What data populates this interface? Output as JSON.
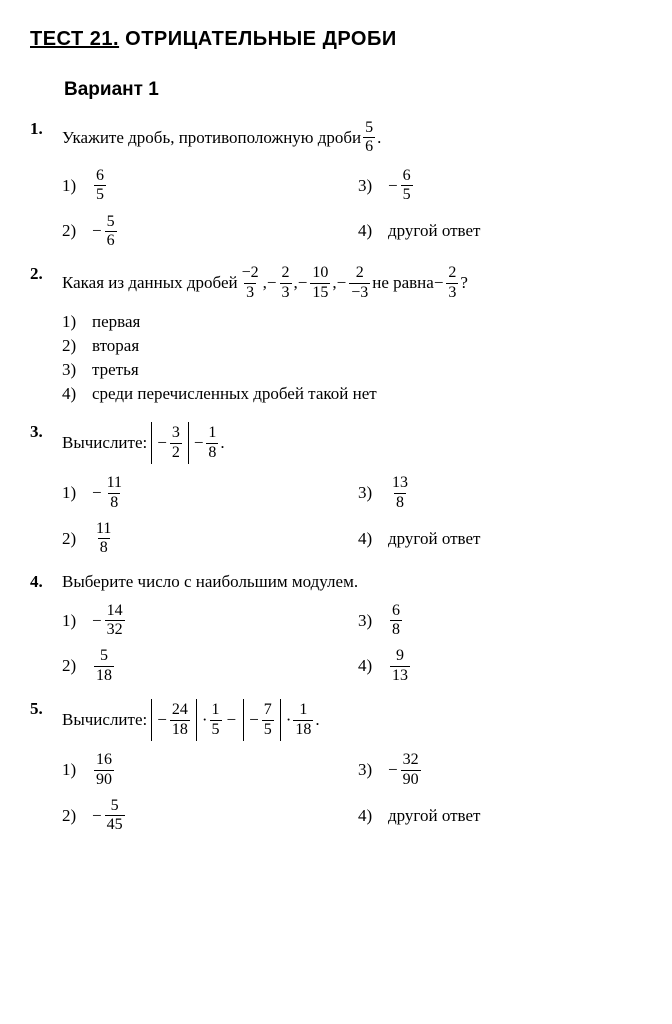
{
  "title_prefix": "ТЕСТ 21.",
  "title_rest": " ОТРИЦАТЕЛЬНЫЕ ДРОБИ",
  "variant": "Вариант 1",
  "q1": {
    "num": "1.",
    "text_a": "Укажите дробь, противоположную дроби ",
    "text_b": ".",
    "f_n": "5",
    "f_d": "6",
    "o1": "1)",
    "o2": "2)",
    "o3": "3)",
    "o4": "4)",
    "a1n": "6",
    "a1d": "5",
    "a2n": "5",
    "a2d": "6",
    "a3n": "6",
    "a3d": "5",
    "a4": "другой ответ"
  },
  "q2": {
    "num": "2.",
    "text_a": "Какая из данных дробей ",
    "text_b": " не равна ",
    "q_end": " ?",
    "comma": ", ",
    "f1n": "−2",
    "f1d": "3",
    "f2n": "2",
    "f2d": "3",
    "f3n": "10",
    "f3d": "15",
    "f4n": "2",
    "f4d": "−3",
    "frn": "2",
    "frd": "3",
    "o1": "1)",
    "o2": "2)",
    "o3": "3)",
    "o4": "4)",
    "a1": "первая",
    "a2": "вторая",
    "a3": "третья",
    "a4": "среди перечисленных дробей такой нет"
  },
  "q3": {
    "num": "3.",
    "text": "Вычислите: ",
    "f1n": "3",
    "f1d": "2",
    "f2n": "1",
    "f2d": "8",
    "dot": ".",
    "o1": "1)",
    "o2": "2)",
    "o3": "3)",
    "o4": "4)",
    "a1n": "11",
    "a1d": "8",
    "a2n": "11",
    "a2d": "8",
    "a3n": "13",
    "a3d": "8",
    "a4": "другой ответ"
  },
  "q4": {
    "num": "4.",
    "text": "Выберите число с наибольшим модулем.",
    "o1": "1)",
    "o2": "2)",
    "o3": "3)",
    "o4": "4)",
    "a1n": "14",
    "a1d": "32",
    "a2n": "5",
    "a2d": "18",
    "a3n": "6",
    "a3d": "8",
    "a4n": "9",
    "a4d": "13"
  },
  "q5": {
    "num": "5.",
    "text": "Вычислите: ",
    "f1n": "24",
    "f1d": "18",
    "f2n": "1",
    "f2d": "5",
    "f3n": "7",
    "f3d": "5",
    "f4n": "1",
    "f4d": "18",
    "mul": "·",
    "minus": "−",
    "dot": ".",
    "o1": "1)",
    "o2": "2)",
    "o3": "3)",
    "o4": "4)",
    "a1n": "16",
    "a1d": "90",
    "a2n": "5",
    "a2d": "45",
    "a3n": "32",
    "a3d": "90",
    "a4": "другой ответ"
  }
}
